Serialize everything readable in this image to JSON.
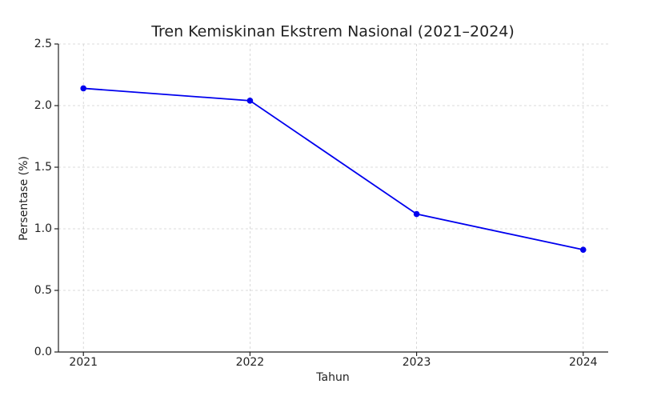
{
  "chart_data": {
    "type": "line",
    "title": "Tren Kemiskinan Ekstrem Nasional (2021–2024)",
    "x_label": "Tahun",
    "y_label": "Persentase (%)",
    "x": [
      2021,
      2022,
      2023,
      2024
    ],
    "series": [
      {
        "name": "Persentase",
        "color": "#0000ee",
        "values": [
          2.14,
          2.04,
          1.12,
          0.83
        ]
      }
    ],
    "xlim": [
      2020.85,
      2024.15
    ],
    "xticks": [
      2021,
      2022,
      2023,
      2024
    ],
    "ylim": [
      0,
      2.5
    ],
    "yticks": [
      {
        "value": 0,
        "label": "0.0"
      },
      0.5,
      {
        "value": 1,
        "label": "1.0"
      },
      1.5,
      {
        "value": 2,
        "label": "2.0"
      },
      2.5
    ],
    "grid": true
  }
}
